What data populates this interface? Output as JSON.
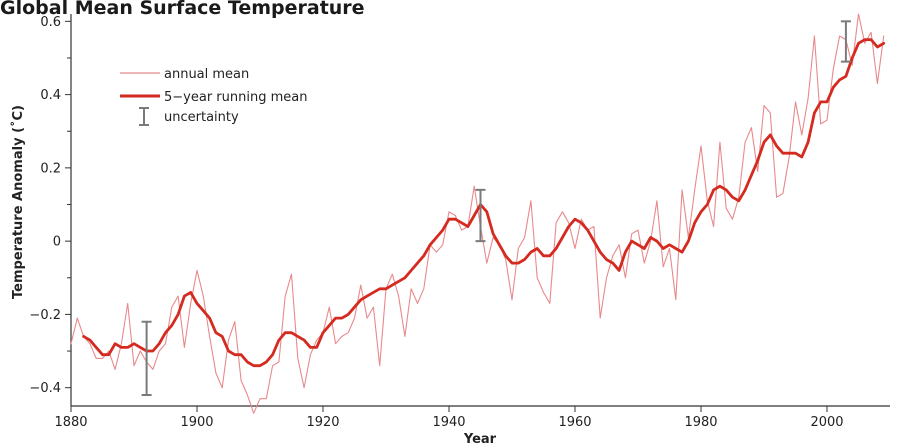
{
  "chart_data": {
    "type": "line",
    "title": "Global Mean Surface Temperature",
    "xlabel": "Year",
    "ylabel": "Temperature Anomaly (˚C)",
    "xlim": [
      1880,
      2010
    ],
    "ylim": [
      -0.45,
      0.62
    ],
    "x_ticks": [
      1880,
      1900,
      1920,
      1940,
      1960,
      1980,
      2000
    ],
    "y_ticks": [
      -0.4,
      -0.2,
      0,
      0.2,
      0.4,
      0.6
    ],
    "y_tick_labels": [
      "−0.4",
      "−0.2",
      "0",
      "0.2",
      "0.4",
      "0.6"
    ],
    "y_minor_ticks": [
      -0.3,
      -0.1,
      0.1,
      0.3,
      0.5
    ],
    "legend": {
      "position": "top-left",
      "annual_label": "annual mean",
      "running_label": "5−year running mean",
      "uncertainty_label": "uncertainty"
    },
    "colors": {
      "annual": "#e8898c",
      "running": "#d42a1f",
      "uncertainty": "#7a7a7a",
      "axis": "#333333"
    },
    "series": [
      {
        "name": "annual mean",
        "x_start": 1880,
        "values": [
          -0.28,
          -0.21,
          -0.26,
          -0.28,
          -0.32,
          -0.32,
          -0.3,
          -0.35,
          -0.28,
          -0.17,
          -0.34,
          -0.3,
          -0.33,
          -0.35,
          -0.3,
          -0.28,
          -0.18,
          -0.15,
          -0.29,
          -0.17,
          -0.08,
          -0.15,
          -0.26,
          -0.36,
          -0.4,
          -0.27,
          -0.22,
          -0.38,
          -0.42,
          -0.47,
          -0.43,
          -0.43,
          -0.34,
          -0.33,
          -0.15,
          -0.09,
          -0.32,
          -0.4,
          -0.31,
          -0.27,
          -0.25,
          -0.18,
          -0.28,
          -0.26,
          -0.25,
          -0.21,
          -0.12,
          -0.21,
          -0.18,
          -0.34,
          -0.13,
          -0.09,
          -0.15,
          -0.26,
          -0.13,
          -0.17,
          -0.13,
          -0.01,
          -0.03,
          -0.01,
          0.08,
          0.07,
          0.03,
          0.04,
          0.15,
          0.04,
          -0.06,
          0.01,
          -0.01,
          -0.05,
          -0.16,
          -0.02,
          0.01,
          0.11,
          -0.1,
          -0.14,
          -0.17,
          0.05,
          0.08,
          0.05,
          -0.02,
          0.06,
          0.03,
          0.04,
          -0.21,
          -0.1,
          -0.04,
          -0.01,
          -0.1,
          0.02,
          0.03,
          -0.06,
          0.0,
          0.11,
          -0.07,
          -0.02,
          -0.16,
          0.14,
          0.01,
          0.14,
          0.26,
          0.11,
          0.04,
          0.27,
          0.09,
          0.06,
          0.12,
          0.27,
          0.31,
          0.19,
          0.37,
          0.35,
          0.12,
          0.13,
          0.23,
          0.38,
          0.29,
          0.39,
          0.56,
          0.32,
          0.33,
          0.47,
          0.56,
          0.55,
          0.48,
          0.62,
          0.54,
          0.57,
          0.43,
          0.56
        ]
      },
      {
        "name": "5−year running mean",
        "x_start": 1882,
        "values": [
          -0.26,
          -0.27,
          -0.29,
          -0.31,
          -0.31,
          -0.28,
          -0.29,
          -0.29,
          -0.28,
          -0.29,
          -0.3,
          -0.3,
          -0.28,
          -0.25,
          -0.23,
          -0.2,
          -0.15,
          -0.14,
          -0.17,
          -0.19,
          -0.21,
          -0.25,
          -0.26,
          -0.3,
          -0.31,
          -0.31,
          -0.33,
          -0.34,
          -0.34,
          -0.33,
          -0.31,
          -0.27,
          -0.25,
          -0.25,
          -0.26,
          -0.27,
          -0.29,
          -0.29,
          -0.25,
          -0.23,
          -0.21,
          -0.21,
          -0.2,
          -0.18,
          -0.16,
          -0.15,
          -0.14,
          -0.13,
          -0.13,
          -0.12,
          -0.11,
          -0.1,
          -0.08,
          -0.06,
          -0.04,
          -0.01,
          0.01,
          0.03,
          0.06,
          0.06,
          0.05,
          0.04,
          0.07,
          0.1,
          0.08,
          0.02,
          -0.01,
          -0.04,
          -0.06,
          -0.06,
          -0.05,
          -0.03,
          -0.02,
          -0.04,
          -0.04,
          -0.02,
          0.01,
          0.04,
          0.06,
          0.05,
          0.03,
          0.0,
          -0.03,
          -0.05,
          -0.06,
          -0.08,
          -0.03,
          0.0,
          -0.01,
          -0.02,
          0.01,
          0.0,
          -0.02,
          -0.01,
          -0.02,
          -0.03,
          0.0,
          0.05,
          0.08,
          0.1,
          0.14,
          0.15,
          0.14,
          0.12,
          0.11,
          0.14,
          0.18,
          0.22,
          0.27,
          0.29,
          0.26,
          0.24,
          0.24,
          0.24,
          0.23,
          0.27,
          0.35,
          0.38,
          0.38,
          0.42,
          0.44,
          0.45,
          0.5,
          0.54,
          0.55,
          0.55,
          0.53,
          0.54
        ]
      }
    ],
    "uncertainty_bars": [
      {
        "x": 1892,
        "low": -0.42,
        "high": -0.22
      },
      {
        "x": 1945,
        "low": 0.0,
        "high": 0.14
      },
      {
        "x": 2003,
        "low": 0.49,
        "high": 0.6
      }
    ]
  }
}
